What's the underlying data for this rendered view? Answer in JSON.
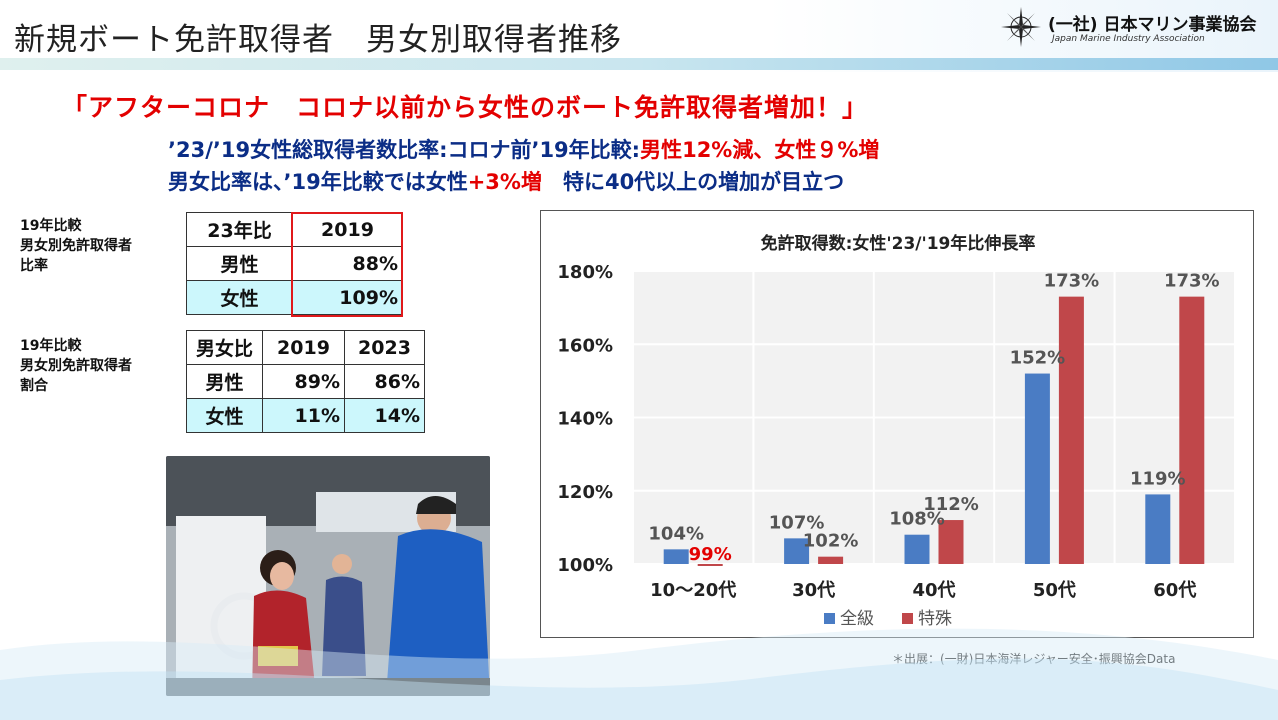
{
  "header": {
    "title": "新規ボート免許取得者　男女別取得者推移",
    "logo_text": "(一社) 日本マリン事業協会",
    "logo_sub": "Japan Marine Industry Association"
  },
  "headline": "「アフターコロナ　コロナ以前から女性のボート免許取得者増加！」",
  "subline1": {
    "prefix": "’23/’19女性総取得者数比率:コロナ前’19年比較:",
    "highlight": "男性12%減、女性９%増"
  },
  "subline2": {
    "prefix": "男女比率は、’19年比較では女性",
    "highlight": "+3%増",
    "suffix": "　特に40代以上の増加が目立つ"
  },
  "table1": {
    "caption": [
      "19年比較",
      "男女別免許取得者",
      "比率"
    ],
    "header": [
      "23年比",
      "2019"
    ],
    "rows": [
      {
        "label": "男性",
        "value": "88%"
      },
      {
        "label": "女性",
        "value": "109%"
      }
    ]
  },
  "table2": {
    "caption": [
      "19年比較",
      "男女別免許取得者",
      "割合"
    ],
    "header": [
      "男女比",
      "2019",
      "2023"
    ],
    "rows": [
      {
        "label": "男性",
        "v2019": "89%",
        "v2023": "86%"
      },
      {
        "label": "女性",
        "v2019": "11%",
        "v2023": "14%"
      }
    ]
  },
  "source": "＊出展：(一財)日本海洋レジャー安全･振興協会Data",
  "chart_data": {
    "type": "bar",
    "title": "免許取得数:女性'23/'19年比伸長率",
    "categories": [
      "10～20代",
      "30代",
      "40代",
      "50代",
      "60代"
    ],
    "series": [
      {
        "name": "全級",
        "values": [
          104,
          107,
          108,
          152,
          119
        ],
        "labels": [
          "104%",
          "107%",
          "108%",
          "152%",
          "119%"
        ],
        "color": "#4a7cc4"
      },
      {
        "name": "特殊",
        "values": [
          99,
          102,
          112,
          173,
          173
        ],
        "labels": [
          "99%",
          "102%",
          "112%",
          "173%",
          "173%"
        ],
        "color": "#c0474a"
      }
    ],
    "ylim": [
      100,
      180
    ],
    "yticks": [
      100,
      120,
      140,
      160,
      180
    ],
    "ytick_labels": [
      "100%",
      "120%",
      "140%",
      "160%",
      "180%"
    ],
    "highlight_label_color": "#e30000",
    "grid": true,
    "legend": "bottom"
  }
}
